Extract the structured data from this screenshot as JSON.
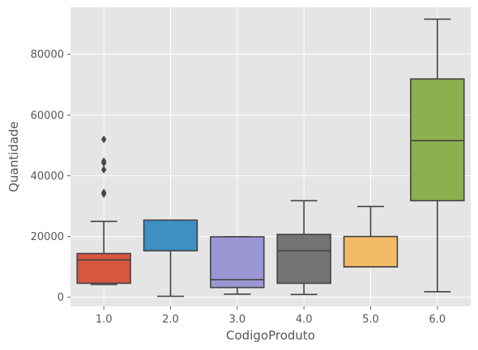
{
  "chart_data": {
    "type": "box",
    "title": "",
    "xlabel": "CodigoProduto",
    "ylabel": "Quantidade",
    "ylim": [
      -3000,
      95500
    ],
    "yticks": [
      0,
      20000,
      40000,
      60000,
      80000
    ],
    "ytick_labels": [
      "0",
      "20000",
      "40000",
      "60000",
      "80000"
    ],
    "grid": true,
    "background": "#e5e5e5",
    "grid_color": "#ffffff",
    "line_color": "#444444",
    "categories": [
      "1.0",
      "2.0",
      "3.0",
      "4.0",
      "5.0",
      "6.0"
    ],
    "boxes": [
      {
        "category": "1.0",
        "whisker_low": 4200,
        "q1": 4600,
        "median": 12300,
        "q3": 14400,
        "whisker_high": 25000,
        "outliers": [
          52000,
          44800,
          44200,
          42000,
          34500,
          34000
        ],
        "color": "#d5573e"
      },
      {
        "category": "2.0",
        "whisker_low": 300,
        "q1": 15300,
        "median": 15300,
        "q3": 25400,
        "whisker_high": 25400,
        "outliers": [],
        "color": "#3d8fc4"
      },
      {
        "category": "3.0",
        "whisker_low": 1000,
        "q1": 3200,
        "median": 5800,
        "q3": 19900,
        "whisker_high": 19900,
        "outliers": [],
        "color": "#9b96d4"
      },
      {
        "category": "4.0",
        "whisker_low": 900,
        "q1": 4600,
        "median": 15300,
        "q3": 20700,
        "whisker_high": 31800,
        "outliers": [],
        "color": "#737373"
      },
      {
        "category": "5.0",
        "whisker_low": 10000,
        "q1": 10000,
        "median": 10000,
        "q3": 20000,
        "whisker_high": 29900,
        "outliers": [],
        "color": "#f4bb67"
      },
      {
        "category": "6.0",
        "whisker_low": 1800,
        "q1": 31800,
        "median": 51600,
        "q3": 71900,
        "whisker_high": 91600,
        "outliers": [],
        "color": "#8bb04d"
      }
    ]
  }
}
